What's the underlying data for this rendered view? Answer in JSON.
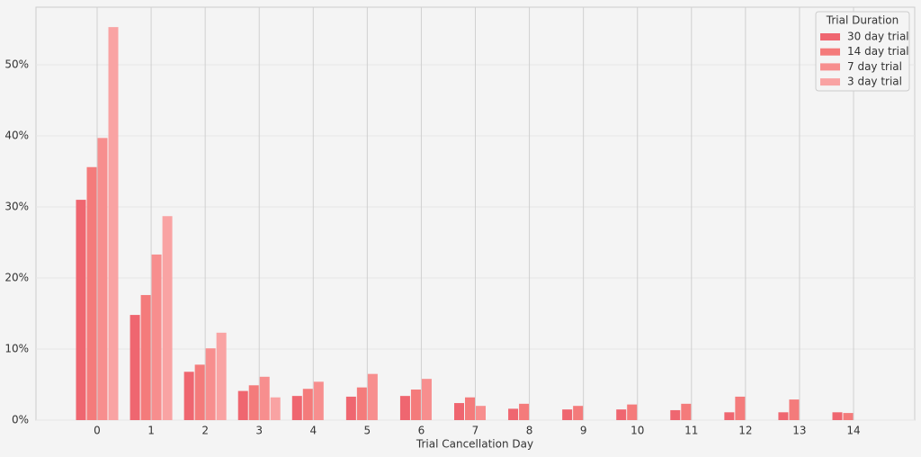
{
  "chart_data": {
    "type": "bar",
    "xlabel": "Trial Cancellation Day",
    "categories": [
      0,
      1,
      2,
      3,
      4,
      5,
      6,
      7,
      8,
      9,
      10,
      11,
      12,
      13,
      14
    ],
    "legend_title": "Trial Duration",
    "legend_position": "upper right",
    "grid": true,
    "ylim": [
      0,
      58.1
    ],
    "yticks": [
      {
        "value": 0,
        "label": "0%"
      },
      {
        "value": 10,
        "label": "10%"
      },
      {
        "value": 20,
        "label": "20%"
      },
      {
        "value": 30,
        "label": "30%"
      },
      {
        "value": 40,
        "label": "40%"
      },
      {
        "value": 50,
        "label": "50%"
      }
    ],
    "series": [
      {
        "name": "30 day trial",
        "color": "#ef6670",
        "values": [
          31.0,
          14.8,
          6.8,
          4.1,
          3.4,
          3.3,
          3.4,
          2.4,
          1.6,
          1.5,
          1.5,
          1.4,
          1.1,
          1.1,
          1.1
        ]
      },
      {
        "name": "14 day trial",
        "color": "#f47b7b",
        "values": [
          35.6,
          17.6,
          7.8,
          4.9,
          4.4,
          4.6,
          4.3,
          3.2,
          2.3,
          2.0,
          2.2,
          2.3,
          3.3,
          2.9,
          1.0
        ]
      },
      {
        "name": "7 day trial",
        "color": "#f78e8e",
        "values": [
          39.7,
          23.3,
          10.1,
          6.1,
          5.4,
          6.5,
          5.8,
          2.0,
          null,
          null,
          null,
          null,
          null,
          null,
          null
        ]
      },
      {
        "name": "3 day trial",
        "color": "#f9a3a3",
        "values": [
          55.3,
          28.7,
          12.3,
          3.2,
          null,
          null,
          null,
          null,
          null,
          null,
          null,
          null,
          null,
          null,
          null
        ]
      }
    ]
  }
}
